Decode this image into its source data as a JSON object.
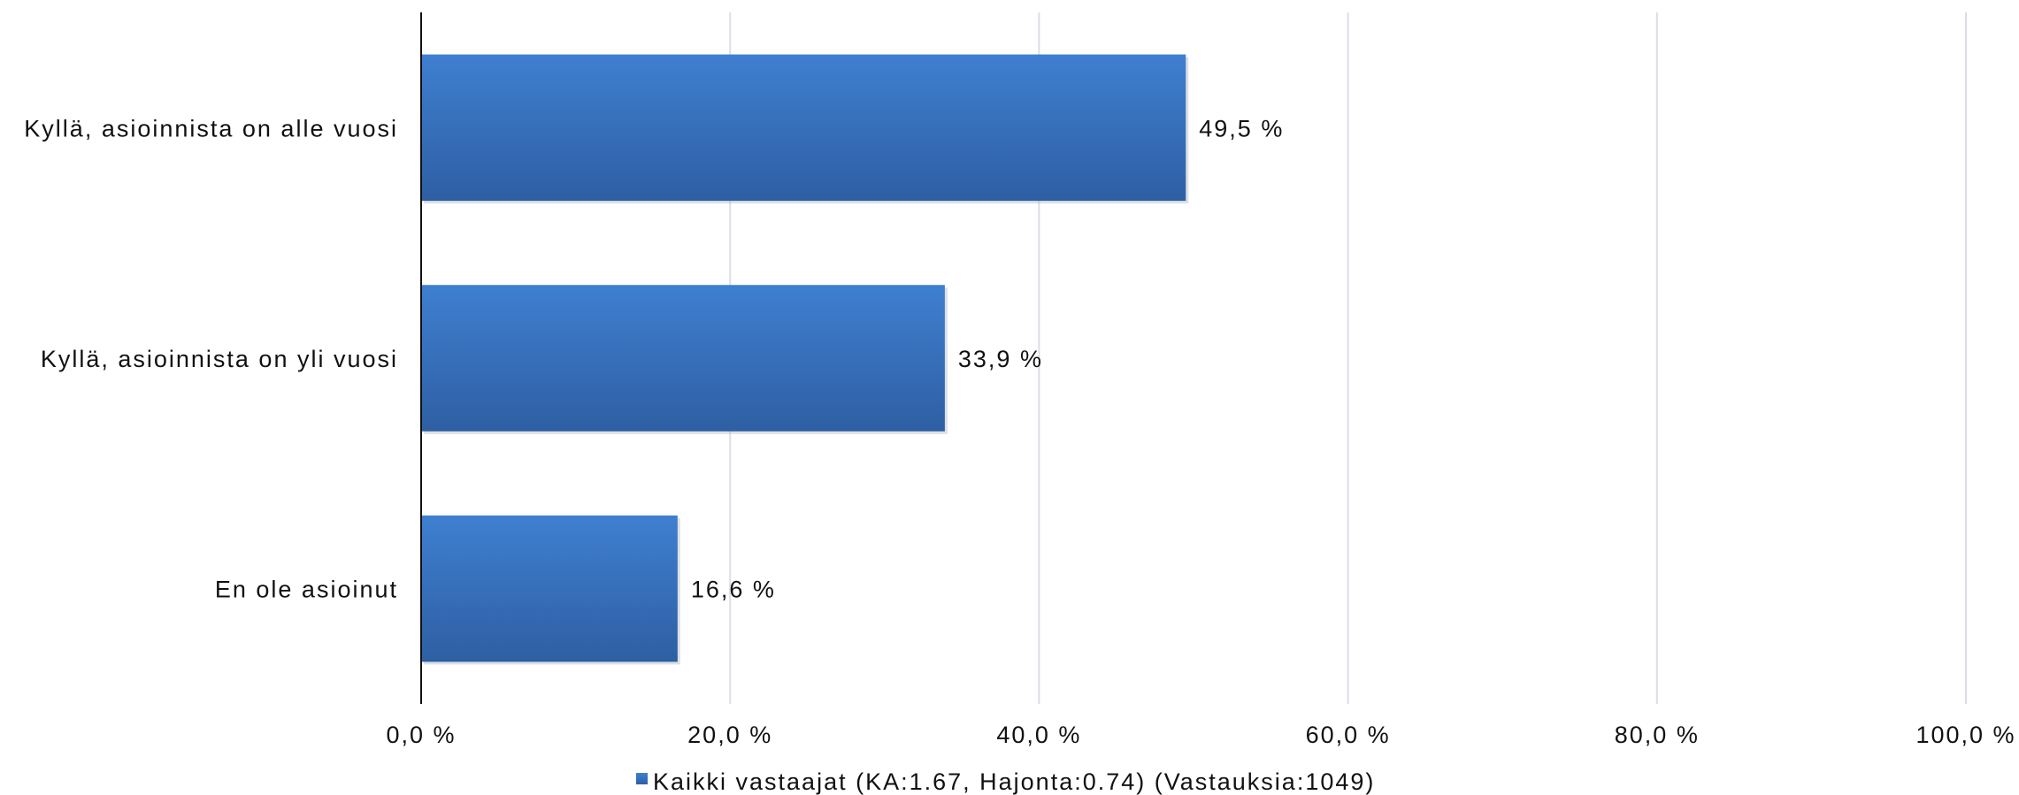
{
  "chart_data": {
    "type": "bar",
    "orientation": "horizontal",
    "categories": [
      "Kyllä, asioinnista on alle vuosi",
      "Kyllä, asioinnista on yli vuosi",
      "En ole asioinut"
    ],
    "series": [
      {
        "name": "Kaikki vastaajat (KA:1.67, Hajonta:0.74) (Vastauksia:1049)",
        "values": [
          49.5,
          33.9,
          16.6
        ],
        "data_labels": [
          "49,5 %",
          "33,9 %",
          "16,6 %"
        ],
        "color": "#3a73bf"
      }
    ],
    "xlim": [
      0,
      100
    ],
    "xticks": [
      0,
      20,
      40,
      60,
      80,
      100
    ],
    "xtick_labels": [
      "0,0 %",
      "20,0 %",
      "40,0 %",
      "60,0 %",
      "80,0 %",
      "100,0 %"
    ],
    "grid": "vertical",
    "gridline_color": "#dcdde8",
    "legend": "bottom"
  }
}
